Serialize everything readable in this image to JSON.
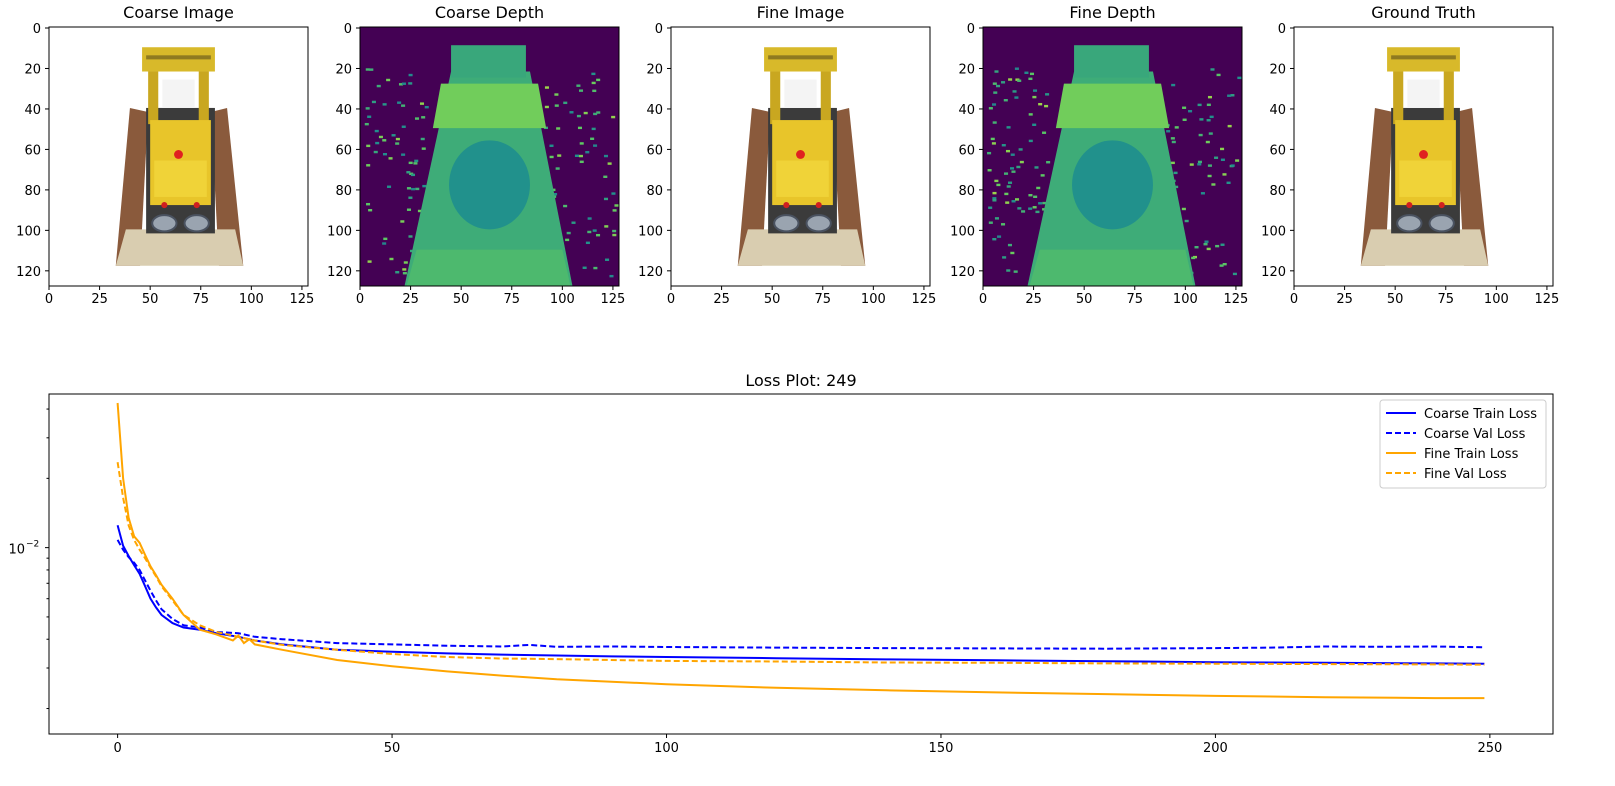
{
  "chart_data": [
    {
      "type": "image",
      "title": "Coarse Image",
      "render": "rgb",
      "xticks": [
        0,
        25,
        50,
        75,
        100,
        125
      ],
      "yticks": [
        0,
        20,
        40,
        60,
        80,
        100,
        120
      ],
      "xlim": [
        0,
        128
      ],
      "ylim": [
        128,
        0
      ]
    },
    {
      "type": "heatmap",
      "title": "Coarse Depth",
      "render": "depth",
      "colormap": "viridis",
      "xticks": [
        0,
        25,
        50,
        75,
        100,
        125
      ],
      "yticks": [
        0,
        20,
        40,
        60,
        80,
        100,
        120
      ],
      "xlim": [
        0,
        128
      ],
      "ylim": [
        128,
        0
      ]
    },
    {
      "type": "image",
      "title": "Fine Image",
      "render": "rgb",
      "xticks": [
        0,
        25,
        50,
        75,
        100,
        125
      ],
      "yticks": [
        0,
        20,
        40,
        60,
        80,
        100,
        120
      ],
      "xlim": [
        0,
        128
      ],
      "ylim": [
        128,
        0
      ]
    },
    {
      "type": "heatmap",
      "title": "Fine Depth",
      "render": "depth",
      "colormap": "viridis",
      "xticks": [
        0,
        25,
        50,
        75,
        100,
        125
      ],
      "yticks": [
        0,
        20,
        40,
        60,
        80,
        100,
        120
      ],
      "xlim": [
        0,
        128
      ],
      "ylim": [
        128,
        0
      ]
    },
    {
      "type": "image",
      "title": "Ground Truth",
      "render": "rgb",
      "xticks": [
        0,
        25,
        50,
        75,
        100,
        125
      ],
      "yticks": [
        0,
        20,
        40,
        60,
        80,
        100,
        120
      ],
      "xlim": [
        0,
        128
      ],
      "ylim": [
        128,
        0
      ]
    },
    {
      "type": "line",
      "title": "Loss Plot: 249",
      "xlabel": "",
      "ylabel": "",
      "yscale": "log",
      "xlim": [
        -12.5,
        261.5
      ],
      "ylim": [
        0.00155,
        0.0465
      ],
      "xticks": [
        0,
        50,
        100,
        150,
        200,
        250
      ],
      "yticks": [
        {
          "value": 0.01,
          "label": "10",
          "exp": "−2"
        }
      ],
      "legend": "top-right",
      "series": [
        {
          "name": "Coarse Train Loss",
          "color": "#0000ff",
          "style": "solid",
          "x": [
            0,
            1,
            2,
            3,
            4,
            5,
            6,
            7,
            8,
            10,
            12,
            15,
            18,
            22,
            25,
            30,
            40,
            50,
            60,
            70,
            80,
            90,
            100,
            120,
            140,
            160,
            180,
            200,
            220,
            240,
            249
          ],
          "y": [
            0.0125,
            0.0102,
            0.0092,
            0.0084,
            0.0077,
            0.0068,
            0.006,
            0.0055,
            0.0051,
            0.0047,
            0.0045,
            0.0044,
            0.00425,
            0.0041,
            0.00395,
            0.0038,
            0.0036,
            0.00353,
            0.00347,
            0.00343,
            0.0034,
            0.00337,
            0.00335,
            0.00331,
            0.00327,
            0.00324,
            0.00321,
            0.00318,
            0.00316,
            0.00314,
            0.00313
          ]
        },
        {
          "name": "Coarse Val Loss",
          "color": "#0000ff",
          "style": "dashed",
          "x": [
            0,
            1,
            2,
            3,
            4,
            5,
            6,
            7,
            8,
            10,
            12,
            15,
            18,
            22,
            25,
            30,
            40,
            50,
            60,
            70,
            75,
            80,
            90,
            100,
            120,
            140,
            160,
            180,
            200,
            210,
            220,
            230,
            240,
            249
          ],
          "y": [
            0.0108,
            0.0098,
            0.0091,
            0.0086,
            0.008,
            0.0072,
            0.0065,
            0.0059,
            0.0054,
            0.0049,
            0.0046,
            0.0045,
            0.0043,
            0.00425,
            0.0041,
            0.004,
            0.00385,
            0.0038,
            0.00375,
            0.00372,
            0.00378,
            0.00371,
            0.00372,
            0.0037,
            0.00368,
            0.00366,
            0.00365,
            0.00364,
            0.00366,
            0.00368,
            0.00372,
            0.00371,
            0.00372,
            0.00369
          ]
        },
        {
          "name": "Fine Train Loss",
          "color": "#ffa500",
          "style": "solid",
          "x": [
            0,
            1,
            2,
            3,
            4,
            5,
            6,
            7,
            8,
            10,
            12,
            15,
            18,
            21,
            22,
            23,
            24,
            25,
            30,
            40,
            50,
            60,
            70,
            80,
            100,
            120,
            140,
            160,
            180,
            200,
            220,
            240,
            249
          ],
          "y": [
            0.0425,
            0.02,
            0.0135,
            0.0112,
            0.0105,
            0.0093,
            0.0083,
            0.0076,
            0.0069,
            0.006,
            0.0051,
            0.0044,
            0.0042,
            0.00395,
            0.00415,
            0.00385,
            0.004,
            0.0038,
            0.0036,
            0.00325,
            0.00305,
            0.0029,
            0.00278,
            0.00268,
            0.00255,
            0.00246,
            0.0024,
            0.00235,
            0.00231,
            0.00227,
            0.00224,
            0.00222,
            0.00222
          ]
        },
        {
          "name": "Fine Val Loss",
          "color": "#ffa500",
          "style": "dashed",
          "x": [
            0,
            1,
            2,
            3,
            4,
            5,
            6,
            7,
            8,
            10,
            12,
            15,
            18,
            22,
            25,
            30,
            40,
            50,
            60,
            70,
            80,
            100,
            120,
            140,
            160,
            180,
            200,
            220,
            240,
            249
          ],
          "y": [
            0.0235,
            0.0165,
            0.0125,
            0.0108,
            0.0098,
            0.009,
            0.0082,
            0.0075,
            0.0068,
            0.0059,
            0.0051,
            0.0046,
            0.0043,
            0.0041,
            0.00395,
            0.00378,
            0.0036,
            0.00345,
            0.00335,
            0.0033,
            0.00328,
            0.00322,
            0.0032,
            0.00317,
            0.00316,
            0.00314,
            0.00313,
            0.00312,
            0.00311,
            0.0031
          ]
        }
      ]
    }
  ]
}
